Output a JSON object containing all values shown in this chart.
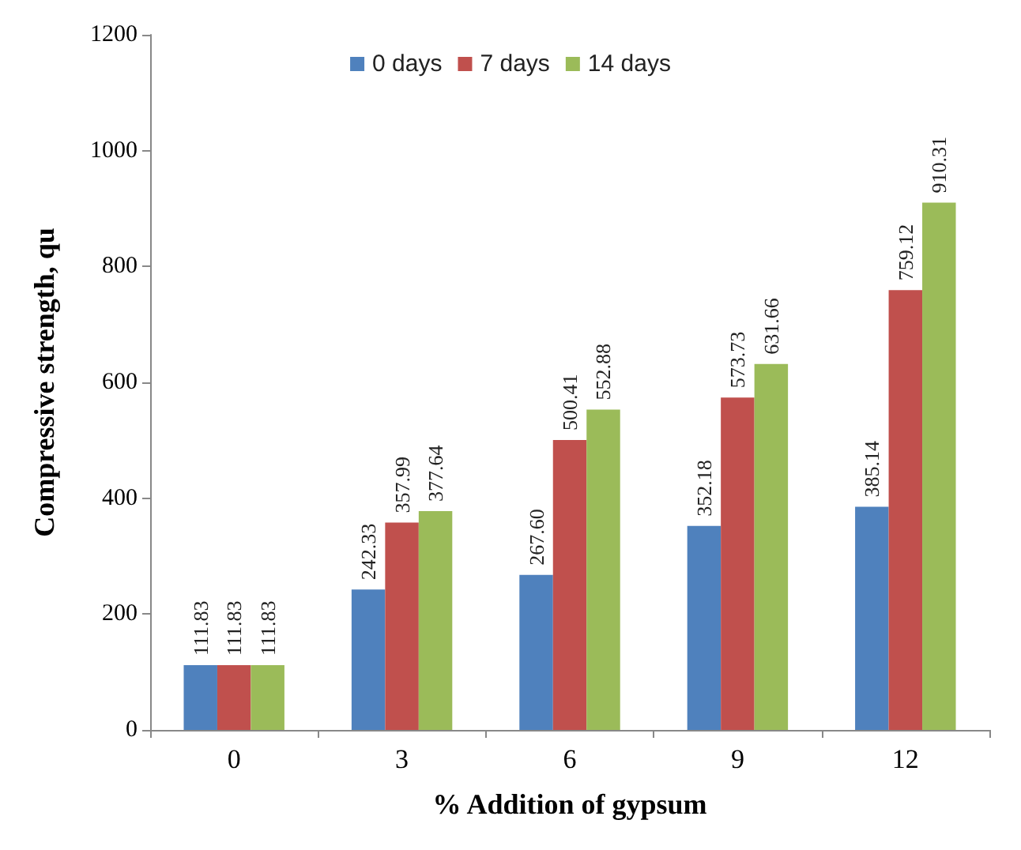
{
  "chart_data": {
    "type": "bar",
    "xlabel": "% Addition of gypsum",
    "ylabel": "Compressive strength, qu",
    "categories": [
      "0",
      "3",
      "6",
      "9",
      "12"
    ],
    "series": [
      {
        "name": "0 days",
        "color": "#4f81bd",
        "values": [
          111.83,
          242.33,
          267.6,
          352.18,
          385.14
        ],
        "value_labels": [
          "111.83",
          "242.33",
          "267.60",
          "352.18",
          "385.14"
        ]
      },
      {
        "name": "7 days",
        "color": "#c0504d",
        "values": [
          111.83,
          357.99,
          500.41,
          573.73,
          759.12
        ],
        "value_labels": [
          "111.83",
          "357.99",
          "500.41",
          "573.73",
          "759.12"
        ]
      },
      {
        "name": "14 days",
        "color": "#9bbb59",
        "values": [
          111.83,
          377.64,
          552.88,
          631.66,
          910.31
        ],
        "value_labels": [
          "111.83",
          "377.64",
          "552.88",
          "631.66",
          "910.31"
        ]
      }
    ],
    "ylim": [
      0,
      1200
    ],
    "yticks": [
      0,
      200,
      400,
      600,
      800,
      1000,
      1200
    ],
    "grid": false,
    "legend": "top"
  }
}
